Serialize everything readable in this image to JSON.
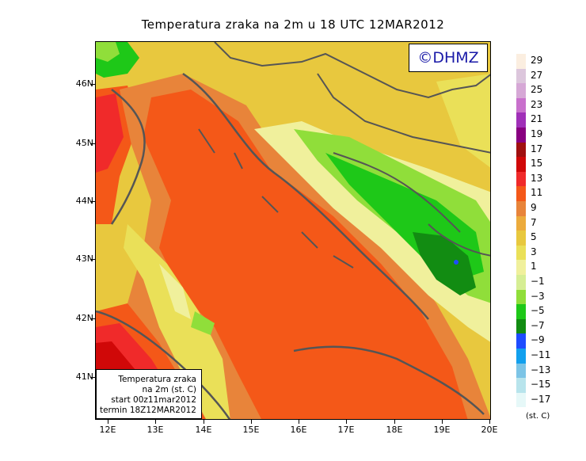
{
  "title": "Temperatura zraka na 2m u 18 UTC 12MAR2012",
  "logo_text": "©DHMZ",
  "info_box": {
    "line1": "Temperatura zraka",
    "line2": "na 2m (st. C)",
    "line3": "start 00z11mar2012",
    "line4": "termin 18Z12MAR2012"
  },
  "lat_ticks": [
    "46N",
    "45N",
    "44N",
    "43N",
    "42N",
    "41N"
  ],
  "lon_ticks": [
    "12E",
    "13E",
    "14E",
    "15E",
    "16E",
    "17E",
    "18E",
    "19E",
    "20E"
  ],
  "legend": {
    "labels": [
      "29",
      "27",
      "25",
      "23",
      "21",
      "19",
      "17",
      "15",
      "13",
      "11",
      "9",
      "7",
      "5",
      "3",
      "1",
      "−1",
      "−3",
      "−5",
      "−7",
      "−9",
      "−11",
      "−13",
      "−15",
      "−17"
    ],
    "colors": [
      "#fbeee0",
      "#dcc6dc",
      "#d6a8d6",
      "#c870cc",
      "#a030b8",
      "#880080",
      "#a01010",
      "#d00808",
      "#f02a2a",
      "#f45818",
      "#e8843a",
      "#ecab3c",
      "#e8c83e",
      "#eae058",
      "#f0f09c",
      "#d6ee94",
      "#90de3a",
      "#1ec818",
      "#128c12",
      "#1e4cff",
      "#12a0ee",
      "#7cc4e6",
      "#b8e4ec",
      "#e6f8f8"
    ],
    "unit": "(st. C)"
  },
  "colors": {
    "sea": "#f45818",
    "coast": "#e8843a",
    "land_warm": "#e8c83e",
    "highland": "#90de3a",
    "mountain": "#1ec818",
    "border_line": "#555555",
    "logo_text": "#1a1aa8"
  }
}
